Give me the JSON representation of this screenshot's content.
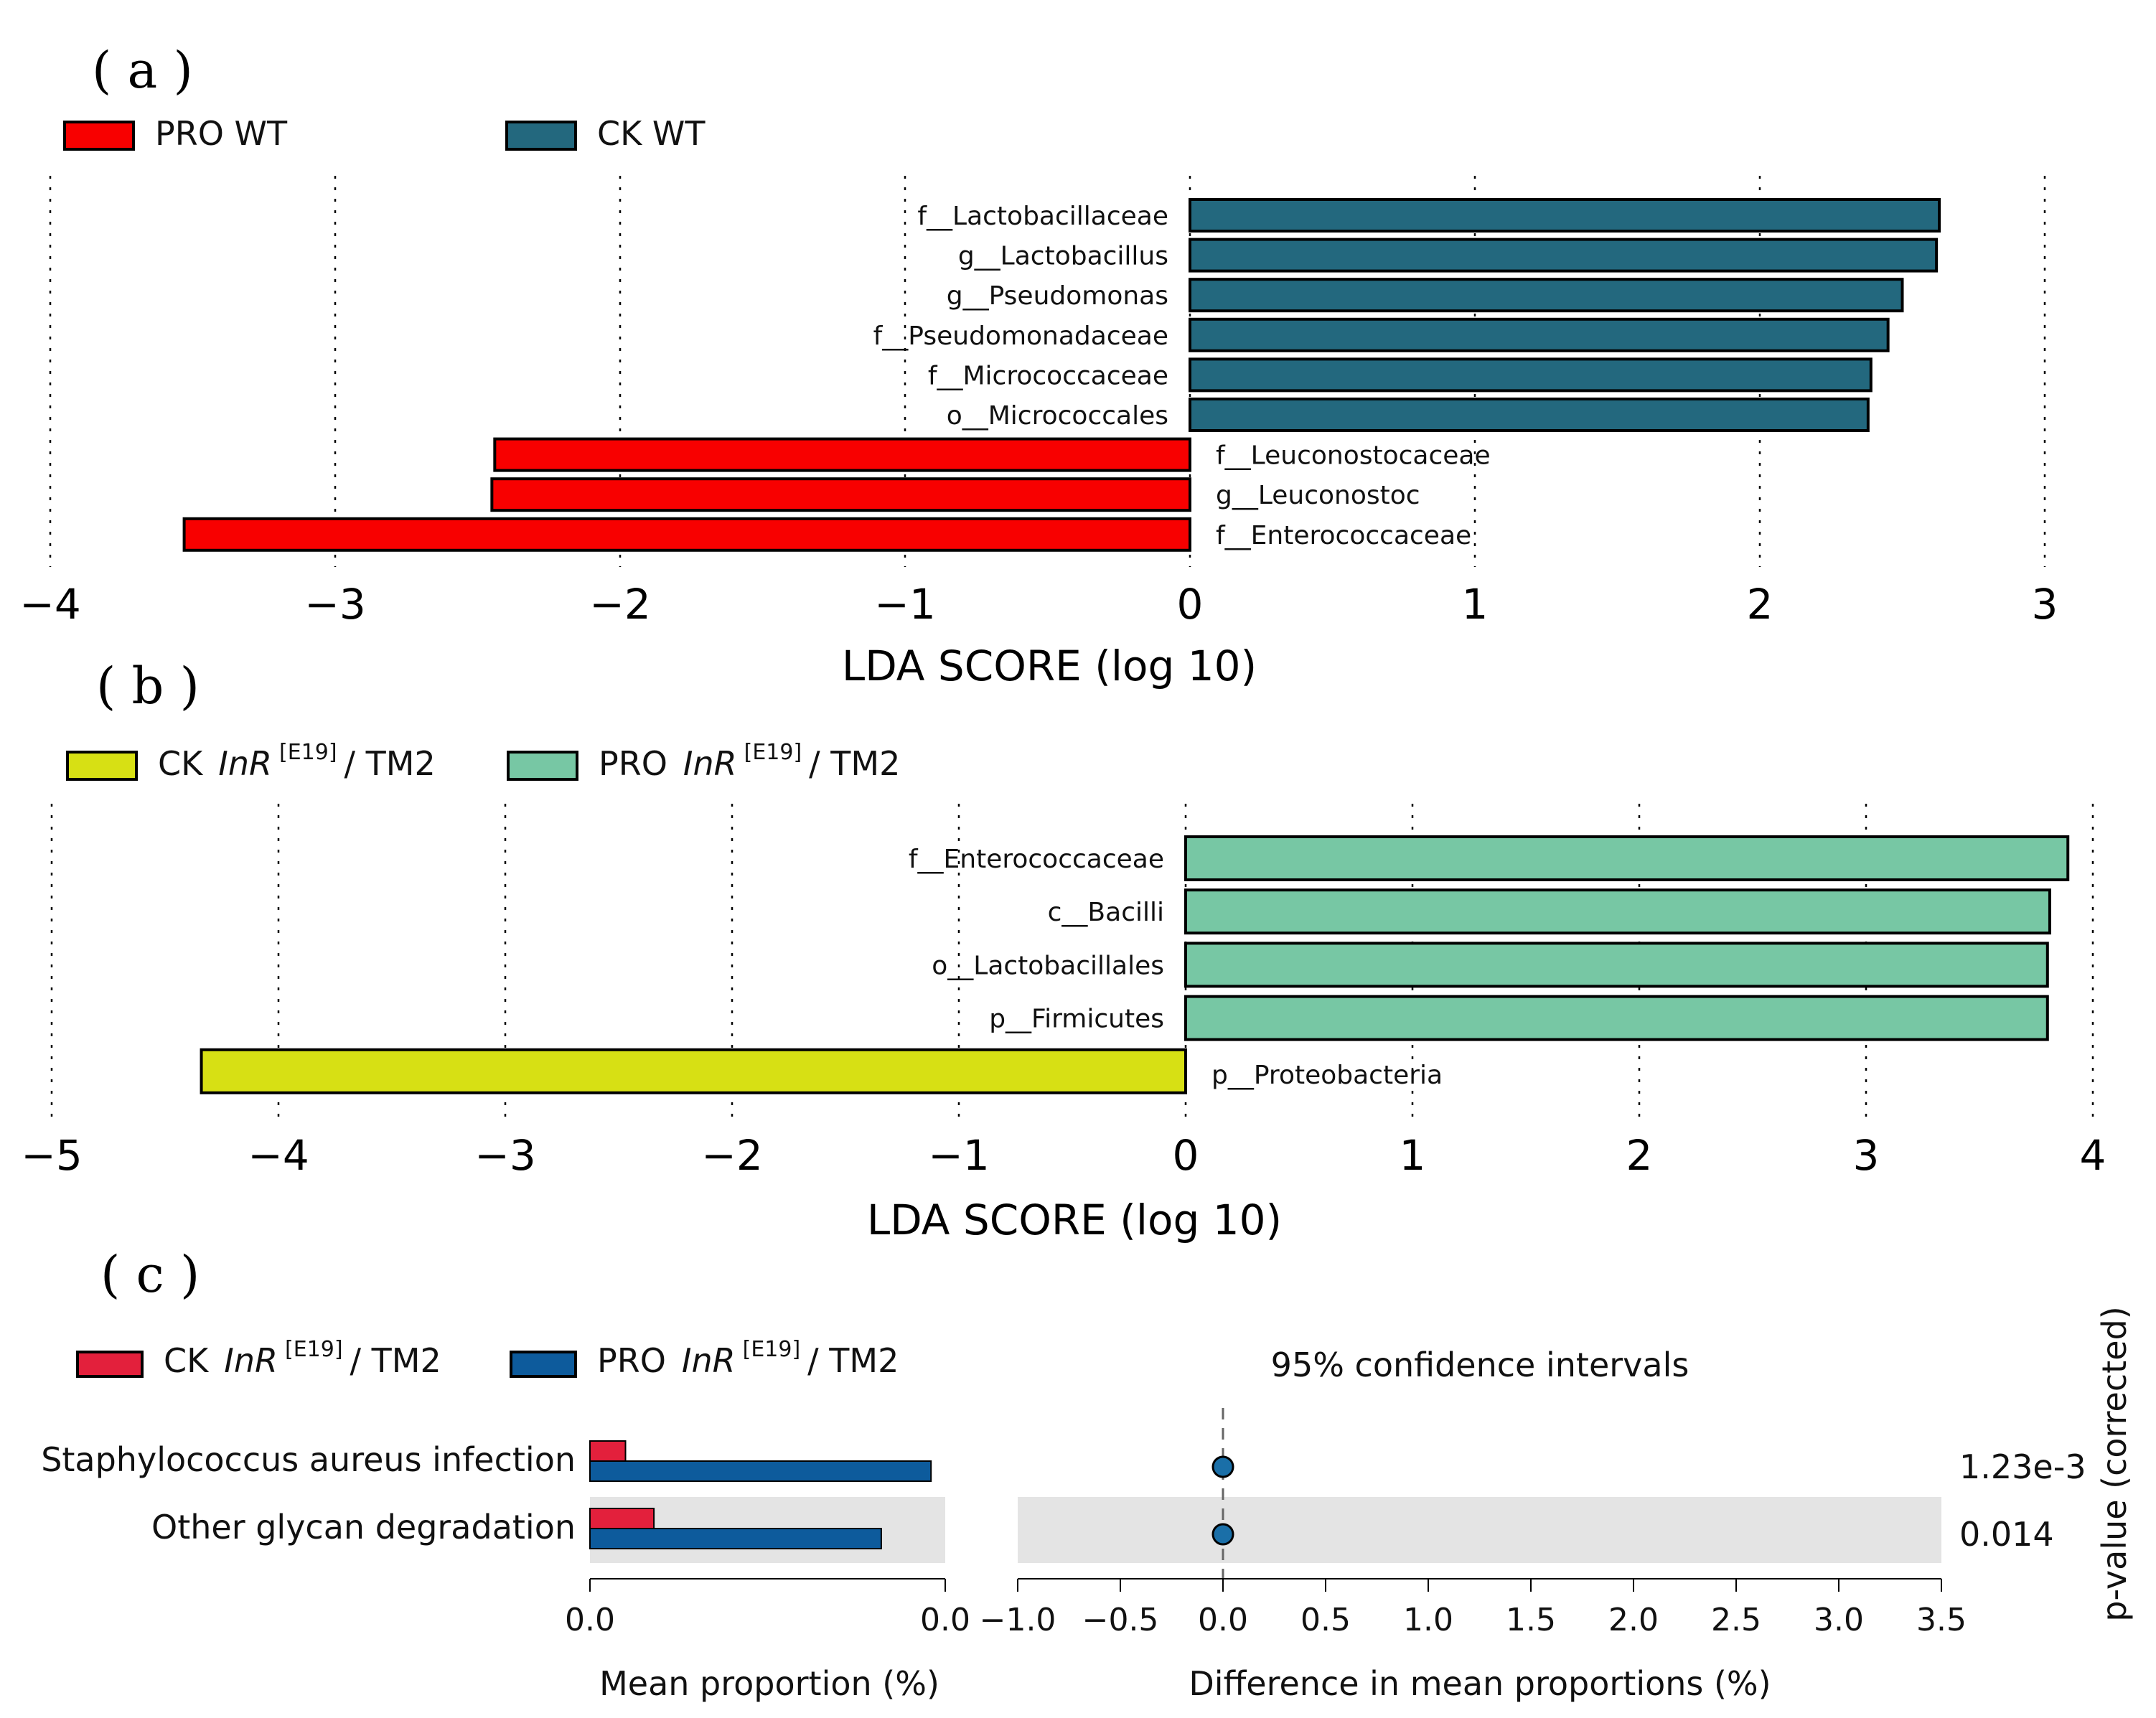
{
  "panels": {
    "a": {
      "letter": "( a )"
    },
    "b": {
      "letter": "( b )"
    },
    "c": {
      "letter": "( c )"
    }
  },
  "colors": {
    "pro_wt": "#f80000",
    "ck_wt": "#23687e",
    "ck_inr_b": "#d7e014",
    "pro_inr_b": "#77c7a4",
    "ck_inr_c": "#e3203c",
    "pro_inr_c": "#0d5b9c",
    "point": "#1a6fa8",
    "shade": "#e4e4e4"
  },
  "chart_data": [
    {
      "id": "a",
      "type": "bar",
      "orientation": "horizontal",
      "legend": [
        {
          "name": "PRO WT",
          "color_key": "pro_wt"
        },
        {
          "name": "CK WT",
          "color_key": "ck_wt"
        }
      ],
      "categories": [
        "f__Lactobacillaceae",
        "g__Lactobacillus",
        "g__Pseudomonas",
        "f__Pseudomonadaceae",
        "f__Micrococcaceae",
        "o__Micrococcales",
        "f__Leuconostocaceae",
        "g__Leuconostoc",
        "f__Enterococcaceae"
      ],
      "values": [
        2.63,
        2.62,
        2.5,
        2.45,
        2.39,
        2.38,
        -2.44,
        -2.45,
        -3.53
      ],
      "xlabel": "LDA SCORE (log 10)",
      "xlim": [
        -4,
        3
      ],
      "xticks": [
        "−4",
        "−3",
        "−2",
        "−1",
        "0",
        "1",
        "2",
        "3"
      ],
      "grid": true
    },
    {
      "id": "b",
      "type": "bar",
      "orientation": "horizontal",
      "legend": [
        {
          "name": "CK",
          "italic": "InR",
          "sup": "[E19]",
          "tail": "/ TM2",
          "color_key": "ck_inr_b"
        },
        {
          "name": "PRO",
          "italic": "InR",
          "sup": "[E19]",
          "tail": "/ TM2",
          "color_key": "pro_inr_b"
        }
      ],
      "categories": [
        "f__Enterococcaceae",
        "c__Bacilli",
        "o__Lactobacillales",
        "p__Firmicutes",
        "p__Proteobacteria"
      ],
      "values": [
        3.89,
        3.81,
        3.8,
        3.8,
        -4.34
      ],
      "xlabel": "LDA SCORE (log 10)",
      "xlim": [
        -5,
        4
      ],
      "xticks": [
        "−5",
        "−4",
        "−3",
        "−2",
        "−1",
        "0",
        "1",
        "2",
        "3",
        "4"
      ],
      "grid": true
    },
    {
      "id": "c",
      "type": "bar",
      "legend": [
        {
          "name": "CK",
          "italic": "InR",
          "sup": "[E19]",
          "tail": "/ TM2",
          "color_key": "ck_inr_c"
        },
        {
          "name": "PRO",
          "italic": "InR",
          "sup": "[E19]",
          "tail": "/ TM2",
          "color_key": "pro_inr_c"
        }
      ],
      "categories": [
        "Staphylococcus aureus infection",
        "Other glycan degradation"
      ],
      "mean_proportion": {
        "xlabel": "Mean proportion (%)",
        "xticks": [
          "0.0",
          "0.0"
        ],
        "xlim": [
          0,
          0.05
        ],
        "series": [
          {
            "name": "CK",
            "values": [
              0.005,
              0.009
            ]
          },
          {
            "name": "PRO",
            "values": [
              0.048,
              0.041
            ]
          }
        ]
      },
      "difference": {
        "title": "95% confidence intervals",
        "xlabel": "Difference in mean proportions (%)",
        "xlim": [
          -1.0,
          3.5
        ],
        "xticks": [
          "−1.0",
          "−0.5",
          "0.0",
          "0.5",
          "1.0",
          "1.5",
          "2.0",
          "2.5",
          "3.0",
          "3.5"
        ],
        "values": [
          0.0,
          0.0
        ]
      },
      "p_values": [
        "1.23e-3",
        "0.014"
      ],
      "p_label": "p-value (corrected)"
    }
  ]
}
